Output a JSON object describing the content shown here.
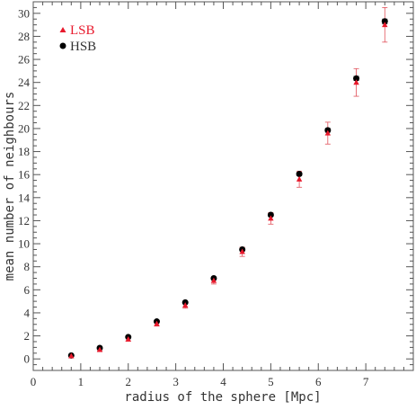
{
  "chart_data": {
    "type": "scatter",
    "xlabel": "radius of the sphere [Mpc]",
    "ylabel": "mean number of neighbours",
    "xlim": [
      0,
      8
    ],
    "ylim": [
      -1,
      31
    ],
    "xticks": [
      0,
      1,
      2,
      3,
      4,
      5,
      6,
      7
    ],
    "yticks": [
      0,
      2,
      4,
      6,
      8,
      10,
      12,
      14,
      16,
      18,
      20,
      22,
      24,
      26,
      28,
      30
    ],
    "x_tick_labels": [
      "0",
      "1",
      "2",
      "3",
      "4",
      "5",
      "6",
      "7"
    ],
    "y_tick_labels": [
      "0",
      "2",
      "4",
      "6",
      "8",
      "10",
      "12",
      "14",
      "16",
      "18",
      "20",
      "22",
      "24",
      "26",
      "28",
      "30"
    ],
    "grid": false,
    "legend_position": "top-left",
    "series": [
      {
        "name": "LSB",
        "marker": "triangle",
        "color": "#e8192c",
        "x": [
          0.8,
          1.4,
          2.0,
          2.6,
          3.2,
          3.8,
          4.4,
          5.0,
          5.6,
          6.2,
          6.8,
          7.4
        ],
        "y": [
          0.25,
          0.8,
          1.7,
          3.05,
          4.65,
          6.8,
          9.3,
          12.2,
          15.6,
          19.6,
          24.0,
          29.0
        ],
        "yerr": [
          0.05,
          0.1,
          0.15,
          0.2,
          0.25,
          0.3,
          0.4,
          0.5,
          0.7,
          0.95,
          1.2,
          1.5
        ]
      },
      {
        "name": "HSB",
        "marker": "circle",
        "color": "#000000",
        "x": [
          0.8,
          1.4,
          2.0,
          2.6,
          3.2,
          3.8,
          4.4,
          5.0,
          5.6,
          6.2,
          6.8,
          7.4
        ],
        "y": [
          0.3,
          0.95,
          1.9,
          3.25,
          4.9,
          7.0,
          9.5,
          12.5,
          16.05,
          19.85,
          24.35,
          29.3
        ],
        "yerr": [
          0.04,
          0.05,
          0.06,
          0.07,
          0.08,
          0.09,
          0.1,
          0.12,
          0.14,
          0.16,
          0.18,
          0.2
        ]
      }
    ]
  }
}
